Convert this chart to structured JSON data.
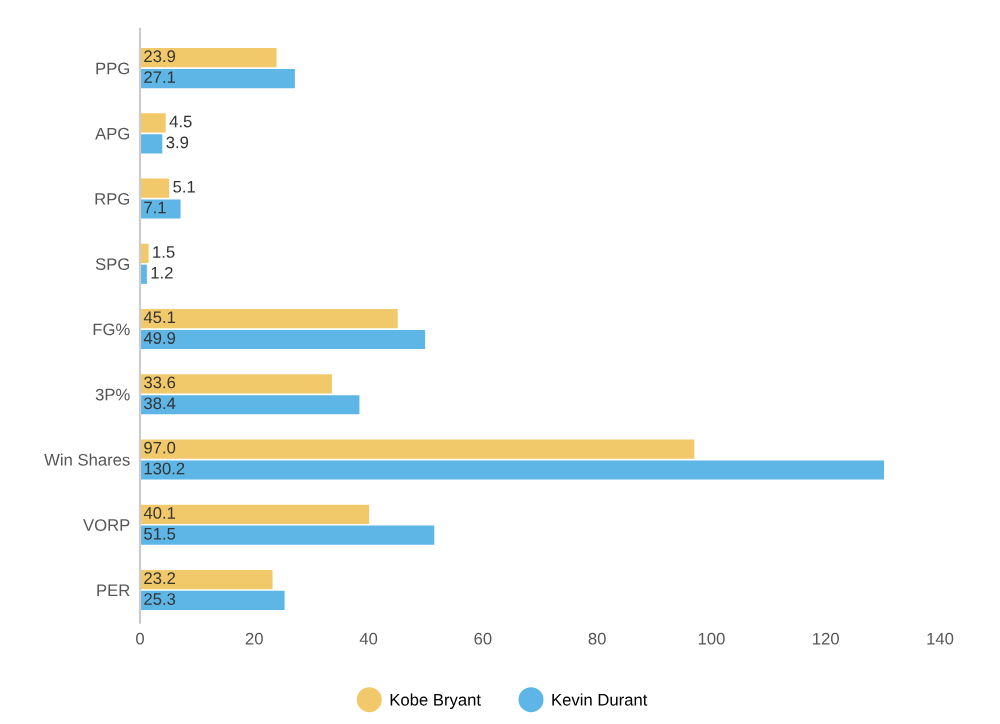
{
  "chart_data": {
    "type": "bar",
    "orientation": "horizontal",
    "categories": [
      "PPG",
      "APG",
      "RPG",
      "SPG",
      "FG%",
      "3P%",
      "Win Shares",
      "VORP",
      "PER"
    ],
    "series": [
      {
        "name": "Kobe Bryant",
        "color": "#f2c96a",
        "values": [
          23.9,
          4.5,
          5.1,
          1.5,
          45.1,
          33.6,
          97.0,
          40.1,
          23.2
        ]
      },
      {
        "name": "Kevin Durant",
        "color": "#5db6e6",
        "values": [
          27.1,
          3.9,
          7.1,
          1.2,
          49.9,
          38.4,
          130.2,
          51.5,
          25.3
        ]
      }
    ],
    "value_labels": [
      [
        "23.9",
        "4.5",
        "5.1",
        "1.5",
        "45.1",
        "33.6",
        "97.0",
        "40.1",
        "23.2"
      ],
      [
        "27.1",
        "3.9",
        "7.1",
        "1.2",
        "49.9",
        "38.4",
        "130.2",
        "51.5",
        "25.3"
      ]
    ],
    "xlim": [
      0,
      140
    ],
    "xticks": [
      0,
      20,
      40,
      60,
      80,
      100,
      120,
      140
    ],
    "grid": false,
    "legend": "bottom"
  }
}
